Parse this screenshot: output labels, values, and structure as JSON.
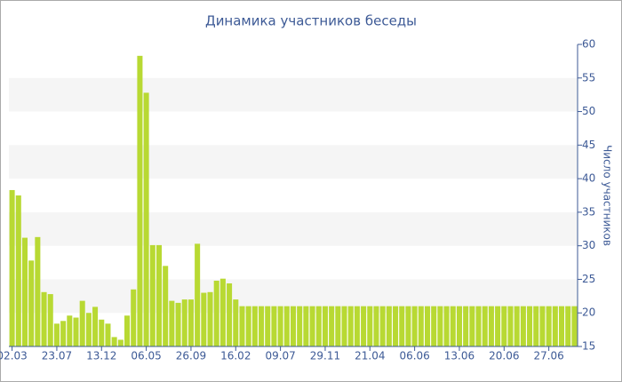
{
  "chart_data": {
    "type": "bar",
    "title": "Динамика участников беседы",
    "y_label": "Число участников",
    "color": "#b8d933",
    "grid": "bands",
    "categories": [
      "02.03",
      null,
      null,
      null,
      null,
      null,
      null,
      "23.07",
      null,
      null,
      null,
      null,
      null,
      null,
      "13.12",
      null,
      null,
      null,
      null,
      null,
      null,
      "06.05",
      null,
      null,
      null,
      null,
      null,
      null,
      "26.09",
      null,
      null,
      null,
      null,
      null,
      null,
      "16.02",
      null,
      null,
      null,
      null,
      null,
      null,
      "09.07",
      null,
      null,
      null,
      null,
      null,
      null,
      "29.11",
      null,
      null,
      null,
      null,
      null,
      null,
      "21.04",
      null,
      null,
      null,
      null,
      null,
      null,
      "06.06",
      null,
      null,
      null,
      null,
      null,
      null,
      "13.06",
      null,
      null,
      null,
      null,
      null,
      null,
      "20.06",
      null,
      null,
      null,
      null,
      null,
      null,
      "27.06",
      null,
      null,
      null,
      null
    ],
    "values": [
      38.3,
      37.5,
      31.2,
      27.8,
      31.3,
      23.1,
      22.8,
      18.4,
      18.8,
      19.6,
      19.3,
      21.8,
      20.0,
      20.9,
      19.0,
      18.4,
      16.4,
      16.0,
      19.6,
      23.5,
      58.3,
      52.8,
      30.1,
      30.1,
      27.0,
      21.8,
      21.5,
      22.0,
      22.0,
      30.3,
      23.0,
      23.1,
      24.8,
      25.1,
      24.4,
      22.0,
      21,
      21,
      21,
      21,
      21,
      21,
      21,
      21,
      21,
      21,
      21,
      21,
      21,
      21,
      21,
      21,
      21,
      21,
      21,
      21,
      21,
      21,
      21,
      21,
      21,
      21,
      21,
      21,
      21,
      21,
      21,
      21,
      21,
      21,
      21,
      21,
      21,
      21,
      21,
      21,
      21,
      21,
      21,
      21,
      21,
      21,
      21,
      21,
      21,
      21,
      21,
      21,
      21
    ],
    "ylim": [
      15,
      60
    ],
    "yticks": [
      15,
      20,
      25,
      30,
      35,
      40,
      45,
      50,
      55,
      60
    ]
  }
}
